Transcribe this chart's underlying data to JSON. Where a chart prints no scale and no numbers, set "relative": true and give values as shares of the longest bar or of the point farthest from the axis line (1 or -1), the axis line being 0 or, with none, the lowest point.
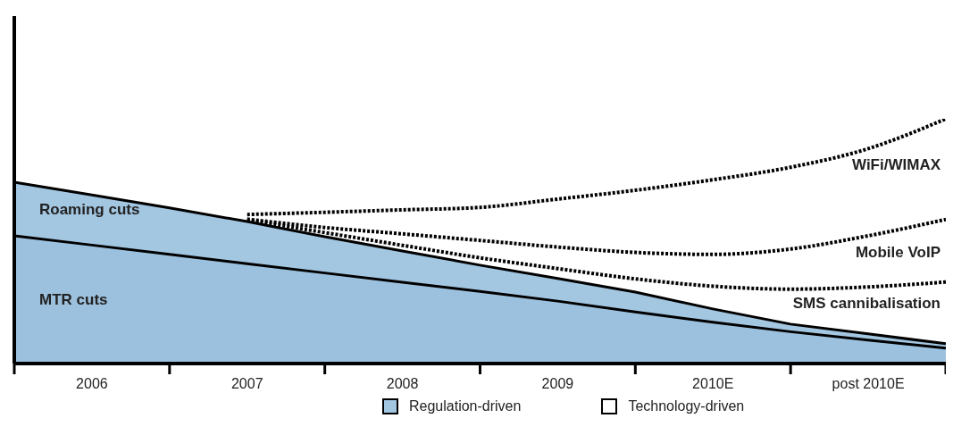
{
  "chart_data": {
    "type": "area",
    "relative": true,
    "tick_labels": "x",
    "categories": [
      null,
      "2006",
      null,
      "2007",
      null,
      "2008",
      null,
      "2009",
      null,
      "2010E",
      null,
      "post 2010E",
      null
    ],
    "series": [
      {
        "name": "Roaming cuts",
        "color": "#a3c6e1",
        "values": [
          0.741,
          0.689,
          0.636,
          0.58,
          0.518,
          0.46,
          0.402,
          0.348,
          0.292,
          0.223,
          0.161,
          0.121,
          0.081
        ]
      },
      {
        "name": "MTR cuts",
        "color": "#9cc1de",
        "values": [
          0.522,
          0.484,
          0.446,
          0.408,
          0.37,
          0.332,
          0.295,
          0.255,
          0.211,
          0.169,
          0.13,
          0.096,
          0.063
        ]
      },
      {
        "name": "WiFi/WIMAX",
        "type": "line",
        "color": "#000000",
        "line_style": "dotted",
        "values": [
          null,
          null,
          null,
          0.609,
          0.618,
          0.628,
          0.638,
          0.672,
          0.708,
          0.751,
          0.802,
          0.878,
          1
        ]
      },
      {
        "name": "Mobile VoIP",
        "type": "line",
        "color": "#000000",
        "line_style": "dotted",
        "values": [
          null,
          null,
          null,
          0.59,
          0.556,
          0.53,
          0.503,
          0.476,
          0.454,
          0.446,
          0.468,
          0.522,
          0.589
        ]
      },
      {
        "name": "SMS cannibalisation",
        "type": "line",
        "color": "#000000",
        "line_style": "dotted",
        "values": [
          null,
          null,
          null,
          0.587,
          0.535,
          0.483,
          0.432,
          0.388,
          0.346,
          0.316,
          0.304,
          0.313,
          0.333
        ]
      }
    ],
    "annotations": [
      "Regulation-driven",
      "Technology-driven"
    ]
  }
}
